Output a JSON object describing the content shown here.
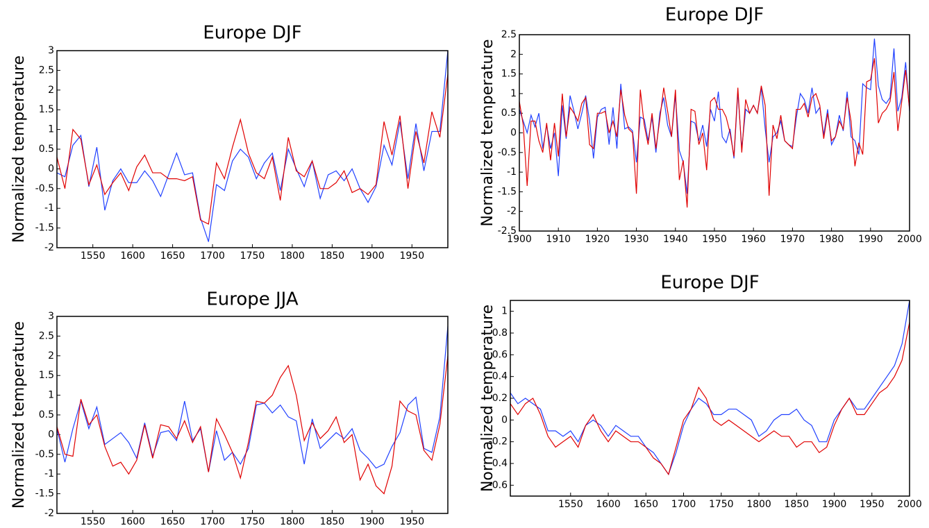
{
  "chart_data": [
    {
      "type": "line",
      "title": "Europe DJF",
      "y_label": "Normalized temperature",
      "x": [
        1505,
        1515,
        1525,
        1535,
        1545,
        1555,
        1565,
        1575,
        1585,
        1595,
        1605,
        1615,
        1625,
        1635,
        1645,
        1655,
        1665,
        1675,
        1685,
        1695,
        1705,
        1715,
        1725,
        1735,
        1745,
        1755,
        1765,
        1775,
        1785,
        1795,
        1805,
        1815,
        1825,
        1835,
        1845,
        1855,
        1865,
        1875,
        1885,
        1895,
        1905,
        1915,
        1925,
        1935,
        1945,
        1955,
        1965,
        1975,
        1985,
        1995
      ],
      "xlim": [
        1505,
        1995
      ],
      "xticks": [
        1550,
        1600,
        1650,
        1700,
        1750,
        1800,
        1850,
        1900,
        1950
      ],
      "ylim": [
        -2,
        3
      ],
      "yticks": [
        -2,
        -1.5,
        -1,
        -0.5,
        0,
        0.5,
        1,
        1.5,
        2,
        2.5,
        3
      ],
      "series": [
        {
          "color": "#2040ff",
          "values": [
            -0.1,
            -0.2,
            0.6,
            0.85,
            -0.45,
            0.55,
            -1.05,
            -0.3,
            0.0,
            -0.35,
            -0.35,
            -0.05,
            -0.3,
            -0.7,
            -0.15,
            0.4,
            -0.15,
            -0.1,
            -1.25,
            -1.85,
            -0.4,
            -0.55,
            0.2,
            0.5,
            0.3,
            -0.25,
            0.15,
            0.4,
            -0.55,
            0.5,
            0.0,
            -0.45,
            0.2,
            -0.75,
            -0.15,
            -0.05,
            -0.3,
            0.0,
            -0.5,
            -0.85,
            -0.45,
            0.6,
            0.1,
            1.2,
            -0.25,
            1.15,
            -0.05,
            0.95,
            0.95,
            3.0
          ]
        },
        {
          "color": "#e00000",
          "values": [
            0.3,
            -0.5,
            1.0,
            0.75,
            -0.4,
            0.1,
            -0.65,
            -0.35,
            -0.1,
            -0.55,
            0.05,
            0.35,
            -0.1,
            -0.1,
            -0.25,
            -0.25,
            -0.3,
            -0.2,
            -1.3,
            -1.4,
            0.15,
            -0.25,
            0.55,
            1.25,
            0.4,
            -0.1,
            -0.25,
            0.3,
            -0.8,
            0.8,
            -0.05,
            -0.2,
            0.2,
            -0.5,
            -0.5,
            -0.35,
            -0.05,
            -0.6,
            -0.5,
            -0.65,
            -0.4,
            1.2,
            0.35,
            1.35,
            -0.5,
            0.95,
            0.15,
            1.45,
            0.8,
            2.4
          ]
        }
      ]
    },
    {
      "type": "line",
      "title": "Europe DJF",
      "y_label": "Normalized temperature",
      "x": [
        1900,
        1901,
        1902,
        1903,
        1904,
        1905,
        1906,
        1907,
        1908,
        1909,
        1910,
        1911,
        1912,
        1913,
        1914,
        1915,
        1916,
        1917,
        1918,
        1919,
        1920,
        1921,
        1922,
        1923,
        1924,
        1925,
        1926,
        1927,
        1928,
        1929,
        1930,
        1931,
        1932,
        1933,
        1934,
        1935,
        1936,
        1937,
        1938,
        1939,
        1940,
        1941,
        1942,
        1943,
        1944,
        1945,
        1946,
        1947,
        1948,
        1949,
        1950,
        1951,
        1952,
        1953,
        1954,
        1955,
        1956,
        1957,
        1958,
        1959,
        1960,
        1961,
        1962,
        1963,
        1964,
        1965,
        1966,
        1967,
        1968,
        1969,
        1970,
        1971,
        1972,
        1973,
        1974,
        1975,
        1976,
        1977,
        1978,
        1979,
        1980,
        1981,
        1982,
        1983,
        1984,
        1985,
        1986,
        1987,
        1988,
        1989,
        1990,
        1991,
        1992,
        1993,
        1994,
        1995,
        1996,
        1997,
        1998,
        1999,
        2000
      ],
      "xlim": [
        1900,
        2000
      ],
      "xticks": [
        1900,
        1910,
        1920,
        1930,
        1940,
        1950,
        1960,
        1970,
        1980,
        1990,
        2000
      ],
      "ylim": [
        -2.5,
        2.5
      ],
      "yticks": [
        -2.5,
        -2,
        -1.5,
        -1,
        -0.5,
        0,
        0.5,
        1,
        1.5,
        2,
        2.5
      ],
      "series": [
        {
          "color": "#2040ff",
          "values": [
            0.6,
            0.3,
            0.0,
            0.45,
            0.15,
            0.5,
            -0.4,
            0.2,
            -0.4,
            0.0,
            -1.1,
            0.7,
            -0.15,
            0.95,
            0.55,
            0.1,
            0.5,
            0.95,
            0.3,
            -0.65,
            0.4,
            0.6,
            0.65,
            -0.3,
            0.65,
            -0.4,
            1.25,
            0.1,
            0.15,
            0.05,
            -0.75,
            0.4,
            0.35,
            -0.2,
            0.4,
            -0.5,
            0.5,
            0.9,
            0.2,
            -0.1,
            0.95,
            -0.45,
            -0.75,
            -1.55,
            0.3,
            0.25,
            -0.2,
            0.2,
            -0.35,
            0.6,
            0.3,
            1.05,
            -0.1,
            -0.25,
            0.1,
            -0.65,
            1.05,
            -0.4,
            0.6,
            0.5,
            0.7,
            0.5,
            1.15,
            0.1,
            -0.75,
            -0.1,
            0.0,
            0.3,
            -0.2,
            -0.3,
            -0.35,
            0.4,
            1.0,
            0.85,
            0.5,
            1.15,
            0.5,
            0.65,
            -0.05,
            0.6,
            -0.3,
            -0.1,
            0.45,
            0.05,
            1.05,
            -0.1,
            -0.2,
            -0.55,
            1.25,
            1.15,
            1.1,
            2.4,
            1.2,
            0.85,
            0.75,
            0.9,
            2.15,
            0.55,
            0.9,
            1.8,
            0.55
          ]
        },
        {
          "color": "#e00000",
          "values": [
            0.8,
            0.2,
            -1.35,
            0.3,
            0.3,
            -0.2,
            -0.5,
            0.25,
            -0.7,
            0.25,
            -0.6,
            1.0,
            -0.1,
            0.65,
            0.5,
            0.3,
            0.75,
            0.9,
            -0.3,
            -0.4,
            0.5,
            0.5,
            0.55,
            0.0,
            0.3,
            -0.1,
            1.1,
            0.45,
            0.1,
            0.0,
            -1.55,
            1.1,
            0.2,
            -0.3,
            0.5,
            -0.4,
            0.35,
            1.15,
            0.55,
            -0.1,
            1.1,
            -1.2,
            -0.7,
            -1.9,
            0.6,
            0.55,
            -0.3,
            0.0,
            -0.95,
            0.8,
            0.9,
            0.6,
            0.6,
            0.4,
            0.0,
            -0.6,
            1.15,
            -0.5,
            0.85,
            0.5,
            0.7,
            0.5,
            1.2,
            0.7,
            -1.6,
            0.2,
            -0.15,
            0.45,
            -0.2,
            -0.3,
            -0.4,
            0.6,
            0.6,
            0.75,
            0.4,
            0.9,
            1.0,
            0.7,
            -0.15,
            0.5,
            -0.2,
            -0.1,
            0.3,
            0.1,
            0.9,
            0.3,
            -0.85,
            -0.25,
            -0.55,
            1.3,
            1.35,
            1.9,
            0.25,
            0.5,
            0.6,
            0.8,
            1.55,
            0.05,
            0.8,
            1.6,
            0.6
          ]
        }
      ]
    },
    {
      "type": "line",
      "title": "Europe JJA",
      "y_label": "Normalized temperature",
      "x": [
        1505,
        1515,
        1525,
        1535,
        1545,
        1555,
        1565,
        1575,
        1585,
        1595,
        1605,
        1615,
        1625,
        1635,
        1645,
        1655,
        1665,
        1675,
        1685,
        1695,
        1705,
        1715,
        1725,
        1735,
        1745,
        1755,
        1765,
        1775,
        1785,
        1795,
        1805,
        1815,
        1825,
        1835,
        1845,
        1855,
        1865,
        1875,
        1885,
        1895,
        1905,
        1915,
        1925,
        1935,
        1945,
        1955,
        1965,
        1975,
        1985,
        1995
      ],
      "xlim": [
        1505,
        1995
      ],
      "xticks": [
        1550,
        1600,
        1650,
        1700,
        1750,
        1800,
        1850,
        1900,
        1950
      ],
      "ylim": [
        -2,
        3
      ],
      "yticks": [
        -2,
        -1.5,
        -1,
        -0.5,
        0,
        0.5,
        1,
        1.5,
        2,
        2.5,
        3
      ],
      "series": [
        {
          "color": "#2040ff",
          "values": [
            0.15,
            -0.7,
            0.15,
            0.85,
            0.15,
            0.7,
            -0.25,
            -0.1,
            0.05,
            -0.2,
            -0.6,
            0.3,
            -0.55,
            0.05,
            0.1,
            -0.15,
            0.85,
            -0.15,
            0.15,
            -0.95,
            0.1,
            -0.65,
            -0.45,
            -0.75,
            -0.35,
            0.75,
            0.8,
            0.55,
            0.75,
            0.45,
            0.35,
            -0.75,
            0.4,
            -0.35,
            -0.15,
            0.05,
            -0.1,
            0.15,
            -0.4,
            -0.6,
            -0.85,
            -0.75,
            -0.3,
            0.05,
            0.75,
            0.95,
            -0.35,
            -0.45,
            0.45,
            2.75
          ]
        },
        {
          "color": "#e00000",
          "values": [
            0.2,
            -0.5,
            -0.55,
            0.9,
            0.25,
            0.5,
            -0.3,
            -0.8,
            -0.7,
            -1.0,
            -0.65,
            0.25,
            -0.6,
            0.25,
            0.2,
            -0.1,
            0.35,
            -0.2,
            0.2,
            -0.95,
            0.4,
            0.0,
            -0.45,
            -1.1,
            -0.2,
            0.85,
            0.8,
            1.0,
            1.45,
            1.75,
            1.0,
            -0.15,
            0.3,
            -0.1,
            0.1,
            0.45,
            -0.2,
            0.0,
            -1.15,
            -0.75,
            -1.3,
            -1.5,
            -0.8,
            0.85,
            0.6,
            0.5,
            -0.4,
            -0.65,
            0.25,
            2.0
          ]
        }
      ]
    },
    {
      "type": "line",
      "title": "Europe DJF",
      "y_label": "Normalized temperature",
      "x": [
        1470,
        1480,
        1490,
        1500,
        1510,
        1520,
        1530,
        1540,
        1550,
        1560,
        1570,
        1580,
        1590,
        1600,
        1610,
        1620,
        1630,
        1640,
        1650,
        1660,
        1670,
        1680,
        1690,
        1700,
        1710,
        1720,
        1730,
        1740,
        1750,
        1760,
        1770,
        1780,
        1790,
        1800,
        1810,
        1820,
        1830,
        1840,
        1850,
        1860,
        1870,
        1880,
        1890,
        1900,
        1910,
        1920,
        1930,
        1940,
        1950,
        1960,
        1970,
        1980,
        1990,
        2000
      ],
      "xlim": [
        1470,
        2000
      ],
      "xticks": [
        1550,
        1600,
        1650,
        1700,
        1750,
        1800,
        1850,
        1900,
        1950,
        2000
      ],
      "ylim": [
        -0.7,
        1.1
      ],
      "yticks": [
        -0.6,
        -0.4,
        -0.2,
        0,
        0.2,
        0.4,
        0.6,
        0.8,
        1
      ],
      "series": [
        {
          "color": "#2040ff",
          "values": [
            0.25,
            0.15,
            0.2,
            0.15,
            0.1,
            -0.1,
            -0.1,
            -0.15,
            -0.1,
            -0.2,
            -0.05,
            0.0,
            -0.05,
            -0.15,
            -0.05,
            -0.1,
            -0.15,
            -0.15,
            -0.25,
            -0.3,
            -0.4,
            -0.5,
            -0.3,
            -0.05,
            0.1,
            0.2,
            0.15,
            0.05,
            0.05,
            0.1,
            0.1,
            0.05,
            0.0,
            -0.15,
            -0.1,
            0.0,
            0.05,
            0.05,
            0.1,
            0.0,
            -0.05,
            -0.2,
            -0.2,
            0.0,
            0.1,
            0.2,
            0.1,
            0.1,
            0.2,
            0.3,
            0.4,
            0.5,
            0.7,
            1.1
          ]
        },
        {
          "color": "#e00000",
          "values": [
            0.15,
            0.05,
            0.15,
            0.2,
            0.05,
            -0.15,
            -0.25,
            -0.2,
            -0.15,
            -0.25,
            -0.05,
            0.05,
            -0.1,
            -0.2,
            -0.1,
            -0.15,
            -0.2,
            -0.2,
            -0.25,
            -0.35,
            -0.4,
            -0.5,
            -0.25,
            0.0,
            0.1,
            0.3,
            0.2,
            0.0,
            -0.05,
            0.0,
            -0.05,
            -0.1,
            -0.15,
            -0.2,
            -0.15,
            -0.1,
            -0.15,
            -0.15,
            -0.25,
            -0.2,
            -0.2,
            -0.3,
            -0.25,
            -0.05,
            0.1,
            0.2,
            0.05,
            0.05,
            0.15,
            0.25,
            0.3,
            0.4,
            0.55,
            0.9
          ]
        }
      ]
    }
  ]
}
